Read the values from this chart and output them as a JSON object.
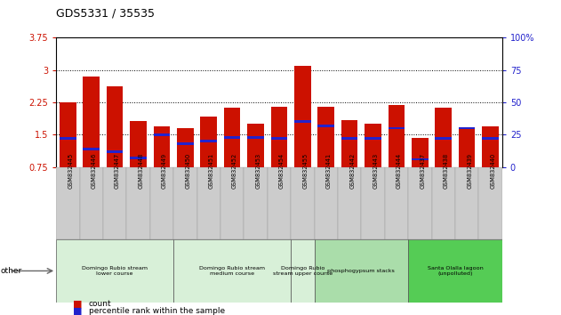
{
  "title": "GDS5331 / 35535",
  "categories": [
    "GSM832445",
    "GSM832446",
    "GSM832447",
    "GSM832448",
    "GSM832449",
    "GSM832450",
    "GSM832451",
    "GSM832452",
    "GSM832453",
    "GSM832454",
    "GSM832455",
    "GSM832441",
    "GSM832442",
    "GSM832443",
    "GSM832444",
    "GSM832437",
    "GSM832438",
    "GSM832439",
    "GSM832440"
  ],
  "count_values": [
    2.25,
    2.85,
    2.62,
    1.82,
    1.7,
    1.65,
    1.93,
    2.13,
    1.76,
    2.14,
    3.1,
    2.14,
    1.83,
    1.75,
    2.18,
    1.43,
    2.12,
    1.65,
    1.7
  ],
  "percentile_values_pct": [
    22,
    14,
    12,
    7,
    25,
    18,
    20,
    23,
    23,
    22,
    35,
    32,
    22,
    22,
    30,
    6,
    22,
    30,
    22
  ],
  "bar_color": "#cc1100",
  "blue_color": "#2222cc",
  "ylim_left": [
    0.75,
    3.75
  ],
  "ylim_right": [
    0,
    100
  ],
  "yticks_left": [
    0.75,
    1.5,
    2.25,
    3.0,
    3.75
  ],
  "yticks_right": [
    0,
    25,
    50,
    75,
    100
  ],
  "ytick_labels_left": [
    "0.75",
    "1.5",
    "2.25",
    "3",
    "3.75"
  ],
  "ytick_labels_right": [
    "0",
    "25",
    "50",
    "75",
    "100%"
  ],
  "hlines": [
    1.5,
    2.25,
    3.0
  ],
  "groups": [
    {
      "label": "Domingo Rubio stream\nlower course",
      "start": 0,
      "end": 4,
      "color": "#d8f0d8"
    },
    {
      "label": "Domingo Rubio stream\nmedium course",
      "start": 5,
      "end": 9,
      "color": "#d8f0d8"
    },
    {
      "label": "Domingo Rubio\nstream upper course",
      "start": 10,
      "end": 10,
      "color": "#d8f0d8"
    },
    {
      "label": "phosphogypsum stacks",
      "start": 11,
      "end": 14,
      "color": "#aaddaa"
    },
    {
      "label": "Santa Olalla lagoon\n(unpolluted)",
      "start": 15,
      "end": 18,
      "color": "#55cc55"
    }
  ],
  "legend_count_label": "count",
  "legend_percentile_label": "percentile rank within the sample",
  "other_label": "other",
  "background_color": "#ffffff",
  "tick_color_left": "#cc1100",
  "tick_color_right": "#2222cc",
  "xticklabel_bg": "#cccccc"
}
